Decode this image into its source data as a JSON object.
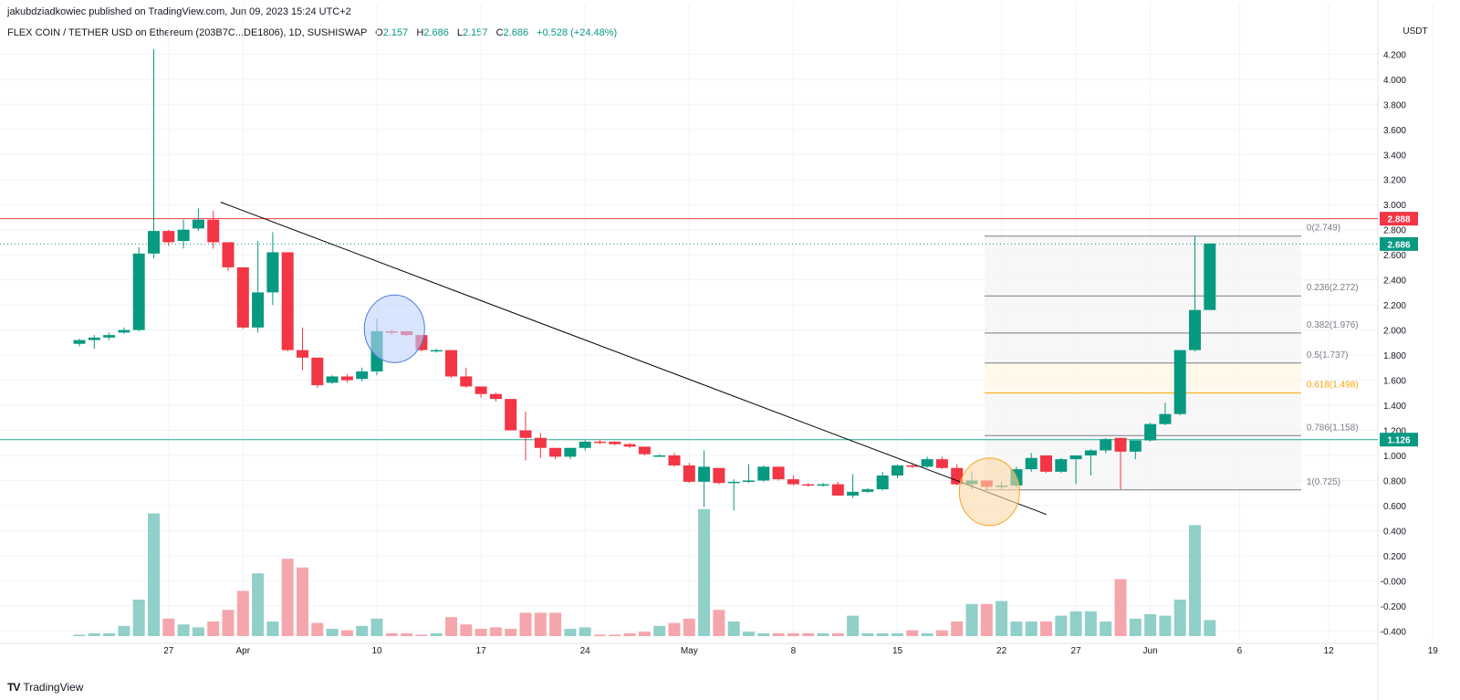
{
  "header": {
    "publisher": "jakubdziadkowiec published on TradingView.com, Jun 09, 2023 15:24 UTC+2",
    "symbol": "FLEX COIN / TETHER USD on Ethereum (203B7C...DE1806), 1D, SUSHISWAP",
    "ohlc": {
      "o_label": "O",
      "o": "2.157",
      "h_label": "H",
      "h": "2.686",
      "l_label": "L",
      "l": "2.157",
      "c_label": "C",
      "c": "2.686",
      "change": "+0.528 (+24.48%)"
    }
  },
  "brand": "TradingView",
  "colors": {
    "up": "#089981",
    "down": "#F23645",
    "vol_up": "#91CFC9",
    "vol_down": "#F5A6AC",
    "resistance": "#F23645",
    "support": "#22AB94",
    "fib_618": "#F7A600"
  },
  "chart_data": {
    "type": "candlestick",
    "currency": "USDT",
    "y_ticks": [
      "4.200",
      "4.000",
      "3.800",
      "3.600",
      "3.400",
      "3.200",
      "3.000",
      "2.800",
      "2.600",
      "2.400",
      "2.200",
      "2.000",
      "1.800",
      "1.600",
      "1.400",
      "1.200",
      "1.000",
      "0.800",
      "0.600",
      "0.400",
      "0.200",
      "-0.000",
      "-0.200",
      "-0.400"
    ],
    "ylim": [
      -0.5,
      4.35
    ],
    "x_labels": [
      "27",
      "Apr",
      "10",
      "17",
      "24",
      "May",
      "8",
      "15",
      "22",
      "27",
      "Jun",
      "6",
      "12",
      "19"
    ],
    "grid": true,
    "start_date": "2023-03-21",
    "ohlc": [
      [
        1.89,
        1.93,
        1.87,
        1.92
      ],
      [
        1.92,
        1.96,
        1.85,
        1.94
      ],
      [
        1.94,
        1.98,
        1.92,
        1.96
      ],
      [
        1.98,
        2.02,
        1.97,
        2.0
      ],
      [
        2.0,
        2.66,
        1.99,
        2.61
      ],
      [
        2.61,
        4.24,
        2.57,
        2.79
      ],
      [
        2.79,
        2.8,
        2.67,
        2.7
      ],
      [
        2.71,
        2.88,
        2.65,
        2.8
      ],
      [
        2.81,
        2.97,
        2.79,
        2.88
      ],
      [
        2.88,
        2.95,
        2.65,
        2.7
      ],
      [
        2.7,
        2.7,
        2.47,
        2.5
      ],
      [
        2.5,
        2.5,
        2.01,
        2.02
      ],
      [
        2.02,
        2.71,
        1.98,
        2.3
      ],
      [
        2.3,
        2.78,
        2.2,
        2.62
      ],
      [
        2.62,
        2.62,
        1.83,
        1.84
      ],
      [
        1.84,
        2.02,
        1.68,
        1.78
      ],
      [
        1.78,
        1.78,
        1.54,
        1.56
      ],
      [
        1.58,
        1.64,
        1.57,
        1.63
      ],
      [
        1.63,
        1.65,
        1.58,
        1.6
      ],
      [
        1.61,
        1.7,
        1.59,
        1.67
      ],
      [
        1.67,
        2.09,
        1.64,
        1.99
      ],
      [
        1.99,
        2.0,
        1.96,
        1.98
      ],
      [
        1.99,
        1.99,
        1.95,
        1.96
      ],
      [
        1.96,
        1.96,
        1.83,
        1.84
      ],
      [
        1.84,
        1.85,
        1.82,
        1.84
      ],
      [
        1.84,
        1.84,
        1.62,
        1.63
      ],
      [
        1.63,
        1.7,
        1.54,
        1.55
      ],
      [
        1.55,
        1.55,
        1.46,
        1.49
      ],
      [
        1.49,
        1.5,
        1.43,
        1.45
      ],
      [
        1.45,
        1.45,
        1.2,
        1.2
      ],
      [
        1.2,
        1.35,
        0.96,
        1.14
      ],
      [
        1.14,
        1.18,
        0.98,
        1.06
      ],
      [
        1.06,
        1.06,
        0.97,
        0.99
      ],
      [
        0.99,
        1.06,
        0.97,
        1.06
      ],
      [
        1.06,
        1.12,
        1.04,
        1.11
      ],
      [
        1.11,
        1.13,
        1.09,
        1.1
      ],
      [
        1.11,
        1.11,
        1.08,
        1.09
      ],
      [
        1.09,
        1.1,
        1.06,
        1.07
      ],
      [
        1.07,
        1.07,
        1.0,
        1.01
      ],
      [
        1.0,
        1.01,
        0.99,
        1.0
      ],
      [
        1.0,
        1.02,
        0.91,
        0.92
      ],
      [
        0.92,
        0.94,
        0.78,
        0.79
      ],
      [
        0.79,
        1.04,
        0.59,
        0.91
      ],
      [
        0.9,
        0.9,
        0.77,
        0.78
      ],
      [
        0.78,
        0.81,
        0.56,
        0.79
      ],
      [
        0.79,
        0.93,
        0.78,
        0.8
      ],
      [
        0.8,
        0.92,
        0.79,
        0.91
      ],
      [
        0.91,
        0.91,
        0.8,
        0.81
      ],
      [
        0.81,
        0.84,
        0.76,
        0.77
      ],
      [
        0.77,
        0.78,
        0.75,
        0.76
      ],
      [
        0.76,
        0.78,
        0.75,
        0.77
      ],
      [
        0.77,
        0.79,
        0.68,
        0.68
      ],
      [
        0.68,
        0.85,
        0.66,
        0.71
      ],
      [
        0.71,
        0.74,
        0.7,
        0.73
      ],
      [
        0.73,
        0.87,
        0.72,
        0.84
      ],
      [
        0.84,
        0.93,
        0.82,
        0.92
      ],
      [
        0.92,
        0.93,
        0.9,
        0.91
      ],
      [
        0.91,
        0.99,
        0.9,
        0.97
      ],
      [
        0.97,
        0.99,
        0.89,
        0.9
      ],
      [
        0.9,
        0.93,
        0.76,
        0.77
      ],
      [
        0.77,
        0.87,
        0.73,
        0.8
      ],
      [
        0.8,
        0.8,
        0.73,
        0.75
      ],
      [
        0.75,
        0.79,
        0.73,
        0.76
      ],
      [
        0.76,
        0.91,
        0.74,
        0.89
      ],
      [
        0.89,
        1.02,
        0.87,
        0.98
      ],
      [
        1.0,
        1.0,
        0.86,
        0.87
      ],
      [
        0.87,
        0.98,
        0.86,
        0.97
      ],
      [
        0.97,
        1.0,
        0.77,
        1.0
      ],
      [
        1.0,
        1.05,
        0.84,
        1.04
      ],
      [
        1.04,
        1.14,
        1.02,
        1.13
      ],
      [
        1.14,
        1.14,
        0.73,
        1.03
      ],
      [
        1.03,
        1.1,
        0.97,
        1.12
      ],
      [
        1.12,
        1.26,
        1.11,
        1.25
      ],
      [
        1.25,
        1.42,
        1.24,
        1.33
      ],
      [
        1.33,
        1.84,
        1.32,
        1.84
      ],
      [
        1.84,
        2.75,
        1.83,
        2.16
      ],
      [
        2.16,
        2.69,
        2.16,
        2.69
      ]
    ],
    "volume": [
      0.01,
      0.02,
      0.02,
      0.07,
      0.25,
      0.84,
      0.12,
      0.08,
      0.06,
      0.1,
      0.18,
      0.31,
      0.43,
      0.1,
      0.53,
      0.47,
      0.09,
      0.05,
      0.04,
      0.07,
      0.12,
      0.02,
      0.02,
      0.01,
      0.02,
      0.13,
      0.08,
      0.05,
      0.06,
      0.05,
      0.16,
      0.16,
      0.16,
      0.05,
      0.06,
      0.01,
      0.01,
      0.02,
      0.03,
      0.07,
      0.09,
      0.12,
      0.87,
      0.18,
      0.1,
      0.03,
      0.02,
      0.02,
      0.02,
      0.02,
      0.02,
      0.02,
      0.14,
      0.02,
      0.02,
      0.02,
      0.04,
      0.02,
      0.04,
      0.1,
      0.22,
      0.22,
      0.24,
      0.1,
      0.1,
      0.1,
      0.14,
      0.17,
      0.17,
      0.1,
      0.39,
      0.12,
      0.15,
      0.14,
      0.25,
      0.76,
      0.11
    ],
    "horizontal_lines": [
      {
        "price": 2.888,
        "label": "2.888",
        "color": "#F23645"
      },
      {
        "price": 1.126,
        "label": "1.126",
        "color": "#22AB94"
      }
    ],
    "current_price": {
      "price": 2.686,
      "label": "2.686"
    },
    "trendline": {
      "from": [
        9,
        3.02
      ],
      "to": [
        65,
        0.53
      ]
    },
    "fibonacci": {
      "start_index": 60,
      "end_index": 83,
      "levels": [
        {
          "ratio": 0,
          "price": 2.749,
          "label": "0(2.749)"
        },
        {
          "ratio": 0.236,
          "price": 2.272,
          "label": "0.236(2.272)"
        },
        {
          "ratio": 0.382,
          "price": 1.976,
          "label": "0.382(1.976)"
        },
        {
          "ratio": 0.5,
          "price": 1.737,
          "label": "0.5(1.737)"
        },
        {
          "ratio": 0.618,
          "price": 1.498,
          "label": "0.618(1.498)"
        },
        {
          "ratio": 0.786,
          "price": 1.158,
          "label": "0.786(1.158)"
        },
        {
          "ratio": 1,
          "price": 0.725,
          "label": "1(0.725)"
        }
      ]
    },
    "circles": [
      {
        "index": 21,
        "price": 2.01,
        "fill": "#BFD2FB",
        "stroke": "#4A7BDB"
      },
      {
        "index": 61,
        "price": 0.71,
        "fill": "#FDD9A8",
        "stroke": "#F5A623"
      }
    ]
  }
}
